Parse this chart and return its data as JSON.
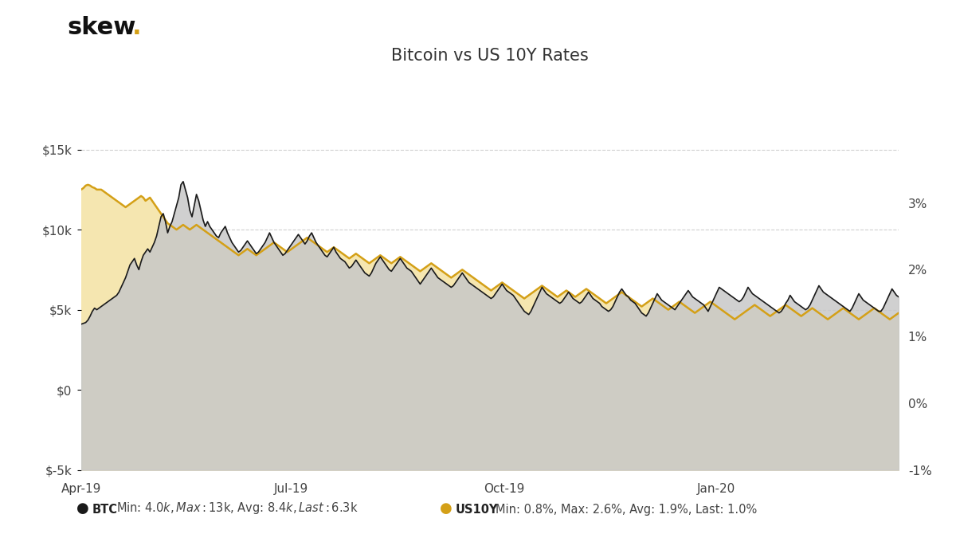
{
  "title": "Bitcoin vs US 10Y Rates",
  "logo_text_skew": "skew",
  "logo_dot": ".",
  "background_color": "#ffffff",
  "plot_bg_color": "#ffffff",
  "grid_color": "#bbbbbb",
  "btc_line_color": "#1a1a1a",
  "btc_fill_color": "#c8c8c8",
  "us10y_line_color": "#d4a017",
  "us10y_fill_color": "#f5e6b0",
  "ylim_left": [
    -5000,
    20000
  ],
  "ylim_right": [
    -1.0,
    5.0
  ],
  "ylabel_left_ticks": [
    -5000,
    0,
    5000,
    10000,
    15000
  ],
  "ylabel_left_labels": [
    "$-5k",
    "$0",
    "$5k",
    "$10k",
    "$15k"
  ],
  "ylabel_right_ticks": [
    -1.0,
    0.0,
    1.0,
    2.0,
    3.0
  ],
  "ylabel_right_labels": [
    "-1%",
    "0%",
    "1%",
    "2%",
    "3%"
  ],
  "xtick_labels": [
    "Apr-19",
    "Jul-19",
    "Oct-19",
    "Jan-20"
  ],
  "btc_data": [
    4100,
    4150,
    4200,
    4350,
    4600,
    4900,
    5100,
    5000,
    5100,
    5200,
    5300,
    5400,
    5500,
    5600,
    5700,
    5800,
    5900,
    6100,
    6400,
    6700,
    7000,
    7400,
    7800,
    8000,
    8200,
    7800,
    7500,
    8000,
    8400,
    8600,
    8800,
    8600,
    8900,
    9200,
    9600,
    10200,
    10800,
    11000,
    10500,
    9800,
    10200,
    10500,
    11000,
    11500,
    12000,
    12800,
    13000,
    12500,
    12000,
    11200,
    10800,
    11500,
    12200,
    11800,
    11200,
    10600,
    10200,
    10500,
    10200,
    10000,
    9800,
    9600,
    9500,
    9800,
    10000,
    10200,
    9800,
    9500,
    9200,
    9000,
    8800,
    8600,
    8700,
    8900,
    9100,
    9300,
    9100,
    8900,
    8700,
    8500,
    8600,
    8800,
    9000,
    9200,
    9500,
    9800,
    9500,
    9200,
    9000,
    8800,
    8600,
    8400,
    8500,
    8700,
    8900,
    9100,
    9300,
    9500,
    9700,
    9500,
    9300,
    9100,
    9300,
    9600,
    9800,
    9500,
    9200,
    9000,
    8800,
    8600,
    8400,
    8300,
    8500,
    8700,
    8900,
    8600,
    8400,
    8200,
    8100,
    8000,
    7800,
    7600,
    7700,
    7900,
    8100,
    7900,
    7700,
    7500,
    7300,
    7200,
    7100,
    7300,
    7600,
    7900,
    8100,
    8300,
    8100,
    7900,
    7700,
    7500,
    7400,
    7600,
    7800,
    8000,
    8200,
    8000,
    7800,
    7600,
    7500,
    7400,
    7200,
    7000,
    6800,
    6600,
    6800,
    7000,
    7200,
    7400,
    7600,
    7400,
    7200,
    7000,
    6900,
    6800,
    6700,
    6600,
    6500,
    6400,
    6500,
    6700,
    6900,
    7100,
    7300,
    7100,
    6900,
    6700,
    6600,
    6500,
    6400,
    6300,
    6200,
    6100,
    6000,
    5900,
    5800,
    5700,
    5800,
    6000,
    6200,
    6400,
    6600,
    6400,
    6200,
    6100,
    6000,
    5900,
    5700,
    5500,
    5300,
    5100,
    4900,
    4800,
    4700,
    4900,
    5200,
    5500,
    5800,
    6100,
    6400,
    6200,
    6000,
    5900,
    5800,
    5700,
    5600,
    5500,
    5400,
    5500,
    5700,
    5900,
    6100,
    5900,
    5700,
    5600,
    5500,
    5400,
    5500,
    5700,
    5900,
    6100,
    5900,
    5700,
    5600,
    5500,
    5400,
    5200,
    5100,
    5000,
    4900,
    5000,
    5200,
    5500,
    5800,
    6100,
    6300,
    6100,
    5900,
    5800,
    5600,
    5500,
    5400,
    5200,
    5000,
    4800,
    4700,
    4600,
    4800,
    5100,
    5400,
    5700,
    6000,
    5800,
    5600,
    5500,
    5400,
    5300,
    5200,
    5100,
    5000,
    5200,
    5400,
    5600,
    5800,
    6000,
    6200,
    6000,
    5800,
    5700,
    5600,
    5500,
    5400,
    5300,
    5100,
    4900,
    5200,
    5500,
    5800,
    6100,
    6400,
    6300,
    6200,
    6100,
    6000,
    5900,
    5800,
    5700,
    5600,
    5500,
    5600,
    5800,
    6100,
    6400,
    6200,
    6000,
    5900,
    5800,
    5700,
    5600,
    5500,
    5400,
    5300,
    5200,
    5100,
    5000,
    4900,
    4800,
    4900,
    5100,
    5400,
    5600,
    5900,
    5700,
    5500,
    5400,
    5300,
    5200,
    5100,
    5000,
    5100,
    5300,
    5600,
    5900,
    6200,
    6500,
    6300,
    6100,
    6000,
    5900,
    5800,
    5700,
    5600,
    5500,
    5400,
    5300,
    5200,
    5100,
    5000,
    4900,
    5100,
    5400,
    5700,
    6000,
    5800,
    5600,
    5500,
    5400,
    5300,
    5200,
    5100,
    5000,
    4900,
    4900,
    5100,
    5400,
    5700,
    6000,
    6300,
    6100,
    5900,
    5800
  ],
  "us10y_data": [
    2.5,
    2.52,
    2.55,
    2.56,
    2.55,
    2.53,
    2.52,
    2.5,
    2.5,
    2.5,
    2.48,
    2.46,
    2.44,
    2.42,
    2.4,
    2.38,
    2.36,
    2.34,
    2.32,
    2.3,
    2.28,
    2.3,
    2.32,
    2.34,
    2.36,
    2.38,
    2.4,
    2.42,
    2.4,
    2.36,
    2.38,
    2.4,
    2.36,
    2.32,
    2.28,
    2.24,
    2.2,
    2.16,
    2.12,
    2.08,
    2.06,
    2.04,
    2.02,
    2.0,
    2.02,
    2.04,
    2.06,
    2.04,
    2.02,
    2.0,
    2.02,
    2.04,
    2.06,
    2.04,
    2.02,
    2.0,
    1.98,
    1.96,
    1.94,
    1.92,
    1.9,
    1.88,
    1.86,
    1.84,
    1.82,
    1.8,
    1.78,
    1.76,
    1.74,
    1.72,
    1.7,
    1.68,
    1.7,
    1.72,
    1.74,
    1.76,
    1.74,
    1.72,
    1.7,
    1.68,
    1.7,
    1.72,
    1.74,
    1.76,
    1.78,
    1.8,
    1.82,
    1.84,
    1.82,
    1.8,
    1.78,
    1.76,
    1.74,
    1.72,
    1.74,
    1.76,
    1.78,
    1.8,
    1.82,
    1.84,
    1.86,
    1.88,
    1.9,
    1.88,
    1.86,
    1.84,
    1.82,
    1.8,
    1.78,
    1.76,
    1.74,
    1.72,
    1.74,
    1.76,
    1.78,
    1.76,
    1.74,
    1.72,
    1.7,
    1.68,
    1.66,
    1.64,
    1.66,
    1.68,
    1.7,
    1.68,
    1.66,
    1.64,
    1.62,
    1.6,
    1.58,
    1.6,
    1.62,
    1.64,
    1.66,
    1.68,
    1.66,
    1.64,
    1.62,
    1.6,
    1.58,
    1.6,
    1.62,
    1.64,
    1.66,
    1.64,
    1.62,
    1.6,
    1.58,
    1.56,
    1.54,
    1.52,
    1.5,
    1.48,
    1.5,
    1.52,
    1.54,
    1.56,
    1.58,
    1.56,
    1.54,
    1.52,
    1.5,
    1.48,
    1.46,
    1.44,
    1.42,
    1.4,
    1.42,
    1.44,
    1.46,
    1.48,
    1.5,
    1.48,
    1.46,
    1.44,
    1.42,
    1.4,
    1.38,
    1.36,
    1.34,
    1.32,
    1.3,
    1.28,
    1.26,
    1.24,
    1.26,
    1.28,
    1.3,
    1.32,
    1.34,
    1.32,
    1.3,
    1.28,
    1.26,
    1.24,
    1.22,
    1.2,
    1.18,
    1.16,
    1.14,
    1.16,
    1.18,
    1.2,
    1.22,
    1.24,
    1.26,
    1.28,
    1.3,
    1.28,
    1.26,
    1.24,
    1.22,
    1.2,
    1.18,
    1.16,
    1.18,
    1.2,
    1.22,
    1.24,
    1.22,
    1.2,
    1.18,
    1.16,
    1.18,
    1.2,
    1.22,
    1.24,
    1.26,
    1.24,
    1.22,
    1.2,
    1.18,
    1.16,
    1.14,
    1.12,
    1.1,
    1.08,
    1.1,
    1.12,
    1.14,
    1.16,
    1.18,
    1.2,
    1.22,
    1.2,
    1.18,
    1.16,
    1.14,
    1.12,
    1.1,
    1.08,
    1.06,
    1.04,
    1.06,
    1.08,
    1.1,
    1.12,
    1.14,
    1.12,
    1.1,
    1.08,
    1.06,
    1.04,
    1.02,
    1.0,
    1.02,
    1.04,
    1.06,
    1.08,
    1.1,
    1.08,
    1.06,
    1.04,
    1.02,
    1.0,
    0.98,
    0.96,
    0.98,
    1.0,
    1.02,
    1.04,
    1.06,
    1.08,
    1.1,
    1.08,
    1.06,
    1.04,
    1.02,
    1.0,
    0.98,
    0.96,
    0.94,
    0.92,
    0.9,
    0.88,
    0.9,
    0.92,
    0.94,
    0.96,
    0.98,
    1.0,
    1.02,
    1.04,
    1.06,
    1.04,
    1.02,
    1.0,
    0.98,
    0.96,
    0.94,
    0.92,
    0.94,
    0.96,
    0.98,
    1.0,
    1.02,
    1.04,
    1.06,
    1.04,
    1.02,
    1.0,
    0.98,
    0.96,
    0.94,
    0.92,
    0.94,
    0.96,
    0.98,
    1.0,
    1.02,
    1.0,
    0.98,
    0.96,
    0.94,
    0.92,
    0.9,
    0.88,
    0.9,
    0.92,
    0.94,
    0.96,
    0.98,
    1.0,
    1.02,
    1.0,
    0.98,
    0.96,
    0.94,
    0.92,
    0.9,
    0.88,
    0.9,
    0.92,
    0.94,
    0.96,
    0.98,
    1.0,
    1.02,
    1.0,
    0.98,
    0.96,
    0.94,
    0.92,
    0.9,
    0.88,
    0.9,
    0.92,
    0.94,
    0.96
  ]
}
